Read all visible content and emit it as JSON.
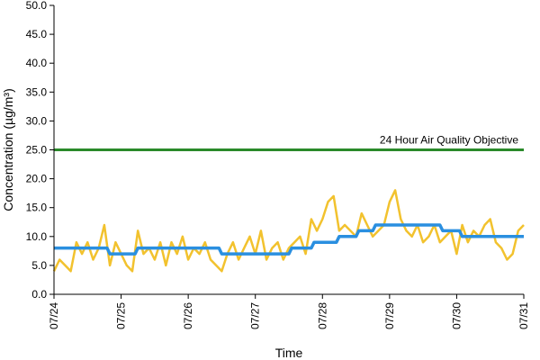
{
  "chart_data": {
    "type": "line",
    "title": "",
    "xlabel": "Time",
    "ylabel": "Concentration (µg/m³)",
    "ylim": [
      0,
      50
    ],
    "yticks": [
      "0.0",
      "5.0",
      "10.0",
      "15.0",
      "20.0",
      "25.0",
      "30.0",
      "35.0",
      "40.0",
      "45.0",
      "50.0"
    ],
    "xlim": [
      "07/24",
      "07/31"
    ],
    "xticks": [
      "07/24",
      "07/25",
      "07/26",
      "07/27",
      "07/28",
      "07/29",
      "07/30",
      "07/31"
    ],
    "grid": false,
    "annotation": "24 Hour Air Quality Objective",
    "colors": {
      "hourly": "#f2c22e",
      "rolling": "#2a8fe0",
      "objective": "#2a8a2a"
    },
    "series": [
      {
        "style": "objective",
        "x": [
          "07/24",
          "07/31"
        ],
        "values": [
          25,
          25
        ]
      },
      {
        "style": "hourly",
        "x": [
          "07/24 00:00",
          "07/24 02:00",
          "07/24 04:00",
          "07/24 06:00",
          "07/24 08:00",
          "07/24 10:00",
          "07/24 12:00",
          "07/24 14:00",
          "07/24 16:00",
          "07/24 18:00",
          "07/24 20:00",
          "07/24 22:00",
          "07/25 00:00",
          "07/25 02:00",
          "07/25 04:00",
          "07/25 06:00",
          "07/25 08:00",
          "07/25 10:00",
          "07/25 12:00",
          "07/25 14:00",
          "07/25 16:00",
          "07/25 18:00",
          "07/25 20:00",
          "07/25 22:00",
          "07/26 00:00",
          "07/26 02:00",
          "07/26 04:00",
          "07/26 06:00",
          "07/26 08:00",
          "07/26 10:00",
          "07/26 12:00",
          "07/26 14:00",
          "07/26 16:00",
          "07/26 18:00",
          "07/26 20:00",
          "07/26 22:00",
          "07/27 00:00",
          "07/27 02:00",
          "07/27 04:00",
          "07/27 06:00",
          "07/27 08:00",
          "07/27 10:00",
          "07/27 12:00",
          "07/27 14:00",
          "07/27 16:00",
          "07/27 18:00",
          "07/27 20:00",
          "07/27 22:00",
          "07/28 00:00",
          "07/28 02:00",
          "07/28 04:00",
          "07/28 06:00",
          "07/28 08:00",
          "07/28 10:00",
          "07/28 12:00",
          "07/28 14:00",
          "07/28 16:00",
          "07/28 18:00",
          "07/28 20:00",
          "07/28 22:00",
          "07/29 00:00",
          "07/29 02:00",
          "07/29 04:00",
          "07/29 06:00",
          "07/29 08:00",
          "07/29 10:00",
          "07/29 12:00",
          "07/29 14:00",
          "07/29 16:00",
          "07/29 18:00",
          "07/29 20:00",
          "07/29 22:00",
          "07/30 00:00",
          "07/30 02:00",
          "07/30 04:00",
          "07/30 06:00",
          "07/30 08:00",
          "07/30 10:00",
          "07/30 12:00",
          "07/30 14:00",
          "07/30 16:00",
          "07/30 18:00",
          "07/30 20:00",
          "07/30 22:00",
          "07/31 00:00"
        ],
        "values": [
          4,
          6,
          5,
          4,
          9,
          7,
          9,
          6,
          8,
          12,
          5,
          9,
          7,
          5,
          4,
          11,
          7,
          8,
          6,
          9,
          5,
          9,
          7,
          10,
          6,
          8,
          7,
          9,
          6,
          5,
          4,
          7,
          9,
          6,
          8,
          10,
          7,
          11,
          6,
          8,
          9,
          6,
          8,
          9,
          10,
          7,
          13,
          11,
          13,
          16,
          17,
          11,
          12,
          11,
          10,
          14,
          12,
          10,
          11,
          12,
          16,
          18,
          13,
          11,
          10,
          12,
          9,
          10,
          12,
          9,
          10,
          11,
          7,
          12,
          9,
          11,
          10,
          12,
          13,
          9,
          8,
          6,
          7,
          11,
          12
        ]
      },
      {
        "style": "rolling",
        "x": [
          "07/24",
          "07/24 19:00",
          "07/24 20:00",
          "07/25 05:00",
          "07/25 06:00",
          "07/26 11:00",
          "07/26 12:00",
          "07/27 12:00",
          "07/27 13:00",
          "07/27 20:00",
          "07/27 21:00",
          "07/28 05:00",
          "07/28 06:00",
          "07/28 12:00",
          "07/28 13:00",
          "07/28 18:00",
          "07/28 19:00",
          "07/29 18:00",
          "07/29 19:00",
          "07/30 01:00",
          "07/30 02:00",
          "07/31"
        ],
        "values": [
          8,
          8,
          7,
          7,
          8,
          8,
          7,
          7,
          8,
          8,
          9,
          9,
          10,
          10,
          11,
          11,
          12,
          12,
          11,
          11,
          10,
          10
        ]
      }
    ]
  }
}
